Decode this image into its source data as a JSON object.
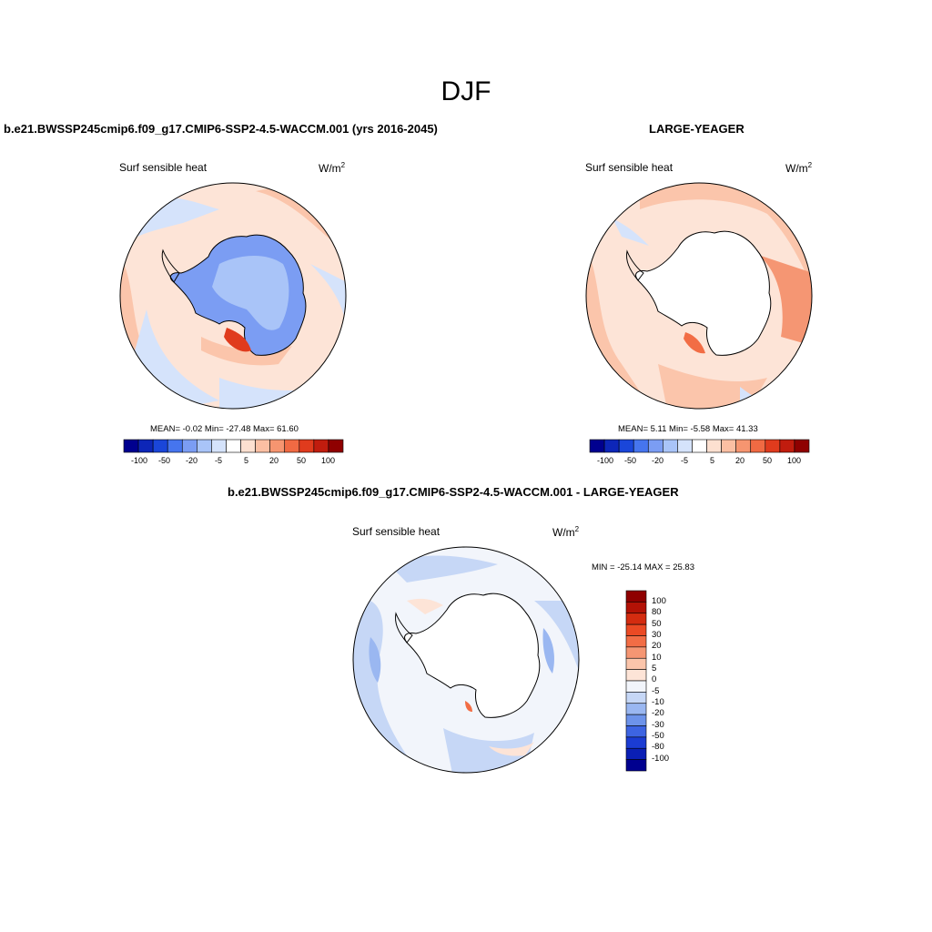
{
  "figure": {
    "season": "DJF",
    "test_case_title": "b.e21.BWSSP245cmip6.f09_g17.CMIP6-SSP2-4.5-WACCM.001 (yrs 2016-2045)",
    "obs_title": "LARGE-YEAGER",
    "diff_title": "b.e21.BWSSP245cmip6.f09_g17.CMIP6-SSP2-4.5-WACCM.001 - LARGE-YEAGER"
  },
  "panels": {
    "test": {
      "variable": "Surf sensible heat",
      "units_base": "W/m",
      "units_exp": "2",
      "stats": "MEAN=  -0.02  Min= -27.48  Max=  61.60"
    },
    "obs": {
      "variable": "Surf sensible heat",
      "units_base": "W/m",
      "units_exp": "2",
      "stats": "MEAN=   5.11  Min=  -5.58  Max=  41.33"
    },
    "diff": {
      "variable": "Surf sensible heat",
      "units_base": "W/m",
      "units_exp": "2",
      "stats": "MIN = -25.14 MAX =  25.83"
    }
  },
  "colorbars": {
    "horizontal_labels": [
      "-100",
      "-50",
      "-20",
      "-5",
      "5",
      "20",
      "50",
      "100"
    ],
    "horizontal_colors": [
      "#00008f",
      "#0d26b8",
      "#1a46d9",
      "#4675ee",
      "#7b9df3",
      "#a9c4f8",
      "#d5e3fb",
      "#ffffff",
      "#fde0d0",
      "#fbbfa3",
      "#f69570",
      "#f06a43",
      "#e03b1d",
      "#c11c0e",
      "#8f0000"
    ],
    "vertical_labels": [
      "100",
      "80",
      "50",
      "30",
      "20",
      "10",
      "5",
      "0",
      "-5",
      "-10",
      "-20",
      "-30",
      "-50",
      "-80",
      "-100"
    ],
    "vertical_colors": [
      "#8f0000",
      "#b31206",
      "#d42c10",
      "#eb4a24",
      "#f26d45",
      "#f59673",
      "#fbc5ab",
      "#fde4d7",
      "#f2f5fb",
      "#c6d7f6",
      "#9ab7f1",
      "#6d93ea",
      "#3d64e2",
      "#1b3cd3",
      "#0a1fb5",
      "#00008f"
    ]
  }
}
